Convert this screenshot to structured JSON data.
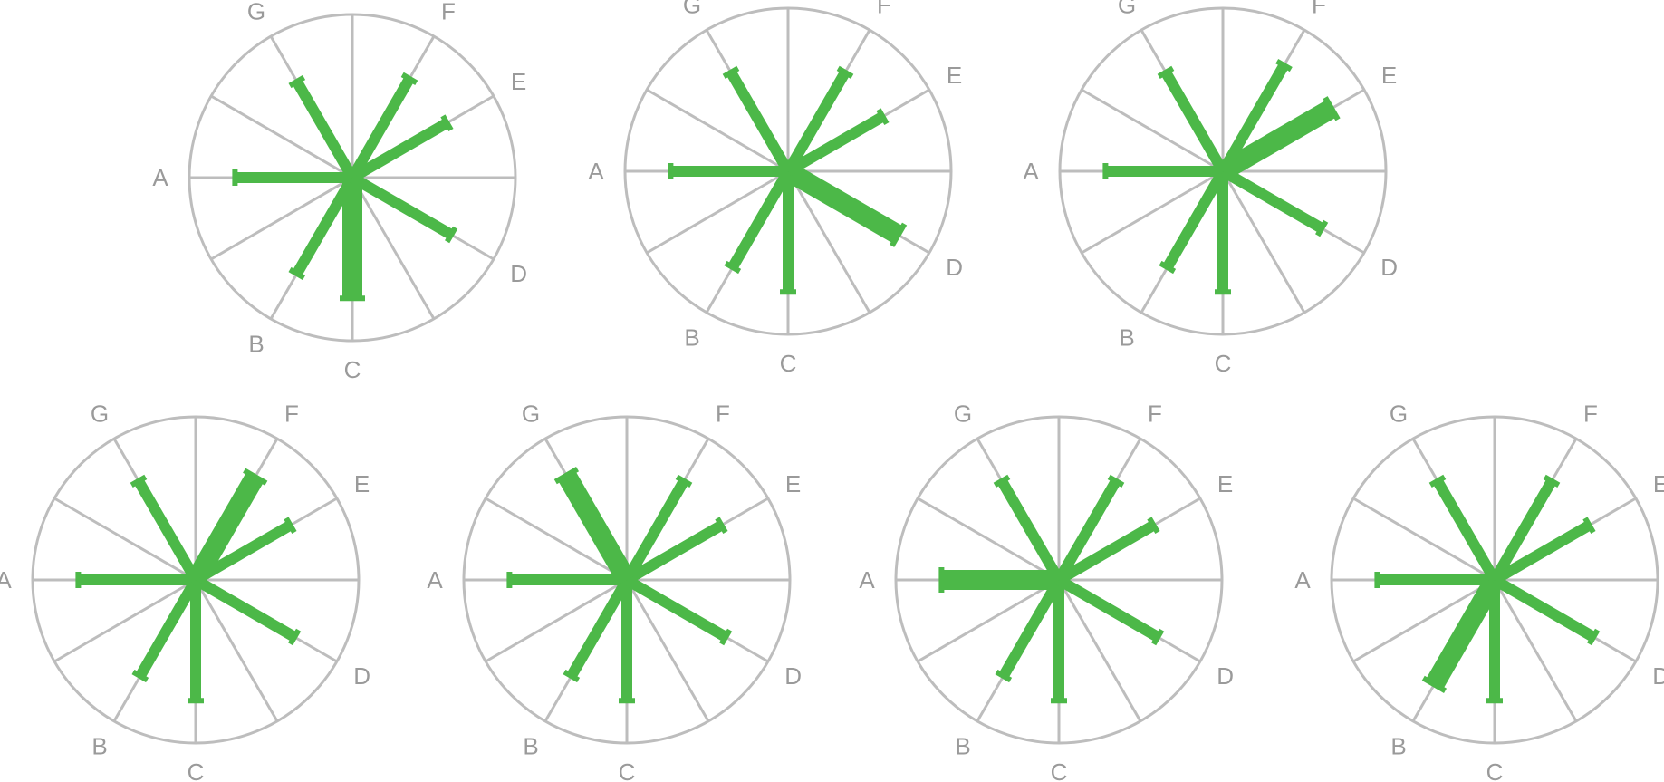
{
  "style": {
    "grid_color": "#bdbdbd",
    "bar_color": "#4cb848",
    "label_color": "#9a9a9a"
  },
  "axis_labels": [
    "A",
    "B",
    "C",
    "D",
    "E",
    "F",
    "G"
  ],
  "glyphs": [
    {
      "values": {
        "A": 0.72,
        "B": 0.68,
        "C": 0.74,
        "D": 0.7,
        "E": 0.67,
        "F": 0.7,
        "G": 0.68
      },
      "weights": {
        "A": 1,
        "B": 1,
        "C": 2,
        "D": 1,
        "E": 1,
        "F": 1,
        "G": 1
      }
    },
    {
      "values": {
        "A": 0.72,
        "B": 0.68,
        "C": 0.74,
        "D": 0.78,
        "E": 0.67,
        "F": 0.7,
        "G": 0.7
      },
      "weights": {
        "A": 1,
        "B": 1,
        "C": 1,
        "D": 2,
        "E": 1,
        "F": 1,
        "G": 1
      }
    },
    {
      "values": {
        "A": 0.72,
        "B": 0.68,
        "C": 0.74,
        "D": 0.7,
        "E": 0.77,
        "F": 0.75,
        "G": 0.7
      },
      "weights": {
        "A": 1,
        "B": 1,
        "C": 1,
        "D": 1,
        "E": 2,
        "F": 1,
        "G": 1
      }
    },
    {
      "values": {
        "A": 0.72,
        "B": 0.68,
        "C": 0.74,
        "D": 0.7,
        "E": 0.67,
        "F": 0.73,
        "G": 0.7
      },
      "weights": {
        "A": 1,
        "B": 1,
        "C": 1,
        "D": 1,
        "E": 1,
        "F": 2,
        "G": 1
      }
    },
    {
      "values": {
        "A": 0.72,
        "B": 0.68,
        "C": 0.74,
        "D": 0.7,
        "E": 0.67,
        "F": 0.7,
        "G": 0.74
      },
      "weights": {
        "A": 1,
        "B": 1,
        "C": 1,
        "D": 1,
        "E": 1,
        "F": 1,
        "G": 2
      }
    },
    {
      "values": {
        "A": 0.72,
        "B": 0.68,
        "C": 0.74,
        "D": 0.7,
        "E": 0.67,
        "F": 0.7,
        "G": 0.7
      },
      "weights": {
        "A": 2,
        "B": 1,
        "C": 1,
        "D": 1,
        "E": 1,
        "F": 1,
        "G": 1
      }
    },
    {
      "values": {
        "A": 0.72,
        "B": 0.74,
        "C": 0.74,
        "D": 0.7,
        "E": 0.67,
        "F": 0.7,
        "G": 0.7
      },
      "weights": {
        "A": 1,
        "B": 2,
        "C": 1,
        "D": 1,
        "E": 1,
        "F": 1,
        "G": 1
      }
    }
  ]
}
